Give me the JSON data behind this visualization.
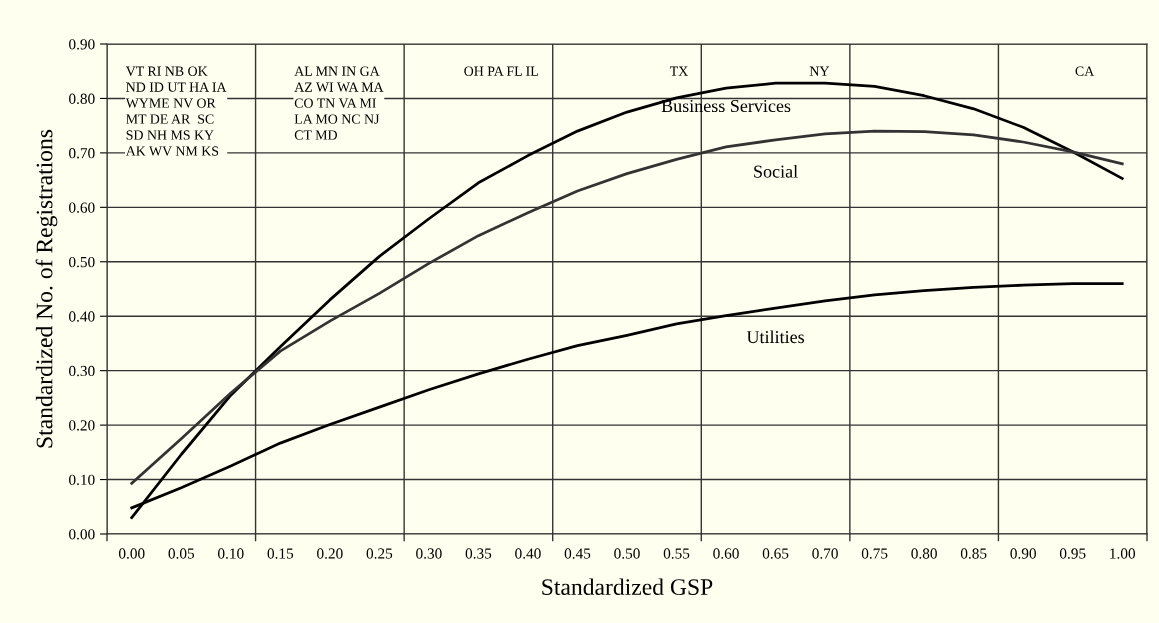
{
  "chart_data": {
    "type": "line",
    "xlabel": "Standardized GSP",
    "ylabel": "Standardized No. of Registrations",
    "categories": [
      "0.00",
      "0.05",
      "0.10",
      "0.15",
      "0.20",
      "0.25",
      "0.30",
      "0.35",
      "0.40",
      "0.45",
      "0.50",
      "0.55",
      "0.60",
      "0.65",
      "0.70",
      "0.75",
      "0.80",
      "0.85",
      "0.90",
      "0.95",
      "1.00"
    ],
    "series": [
      {
        "name": "Business Services",
        "color": "#000000",
        "values": [
          0.03,
          0.146,
          0.255,
          0.344,
          0.43,
          0.51,
          0.579,
          0.645,
          0.695,
          0.74,
          0.775,
          0.801,
          0.819,
          0.828,
          0.828,
          0.822,
          0.805,
          0.781,
          0.747,
          0.702,
          0.653
        ]
      },
      {
        "name": "Social",
        "color": "#333333",
        "values": [
          0.093,
          0.175,
          0.259,
          0.336,
          0.391,
          0.442,
          0.497,
          0.548,
          0.59,
          0.63,
          0.662,
          0.688,
          0.711,
          0.724,
          0.735,
          0.74,
          0.739,
          0.733,
          0.72,
          0.702,
          0.68
        ]
      },
      {
        "name": "Utilities",
        "color": "#000000",
        "values": [
          0.048,
          0.085,
          0.125,
          0.167,
          0.201,
          0.233,
          0.265,
          0.294,
          0.321,
          0.346,
          0.365,
          0.386,
          0.401,
          0.415,
          0.428,
          0.439,
          0.447,
          0.453,
          0.457,
          0.46,
          0.46
        ]
      }
    ],
    "ylim": [
      0,
      0.9
    ],
    "yticks": [
      {
        "value": 0,
        "label": "0.00"
      },
      {
        "value": 0.1,
        "label": "0.10"
      },
      {
        "value": 0.2,
        "label": "0.20"
      },
      {
        "value": 0.3,
        "label": "0.30"
      },
      {
        "value": 0.4,
        "label": "0.40"
      },
      {
        "value": 0.5,
        "label": "0.50"
      },
      {
        "value": 0.6,
        "label": "0.60"
      },
      {
        "value": 0.7,
        "label": "0.70"
      },
      {
        "value": 0.8,
        "label": "0.80"
      },
      {
        "value": 0.9,
        "label": "0.90"
      }
    ],
    "grid": true,
    "marker": "none",
    "line_style": "solid",
    "legend": false,
    "annotations": [
      "VT RI NB OK\nND ID UT HA IA\nWYME NV OR\nMT DE AR  SC\nSD NH MS KY\nAK WV NM KS",
      "AL MN IN GA\nAZ WI WA MA\nCO TN VA MI\nLA MO NC NJ\nCT MD",
      "OH PA FL IL",
      "TX",
      "NY",
      "CA"
    ]
  }
}
